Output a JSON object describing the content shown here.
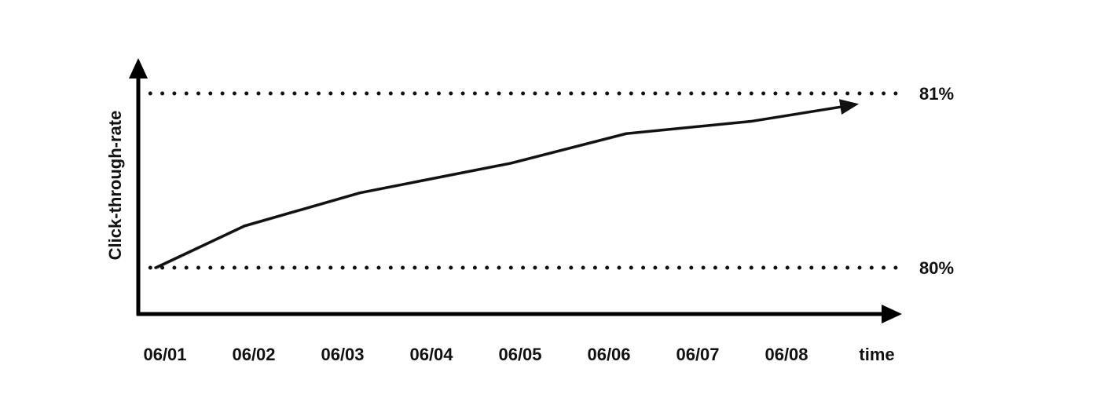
{
  "chart_data": {
    "type": "line",
    "ylabel": "Click-through-rate",
    "xlabel": "time",
    "categories": [
      "06/01",
      "06/02",
      "06/03",
      "06/04",
      "06/05",
      "06/06",
      "06/07",
      "06/08"
    ],
    "series": [
      {
        "x": [
          0,
          1.0,
          2.3,
          3.0,
          4.0,
          5.3,
          6.7,
          7.8
        ],
        "values": [
          80.0,
          80.24,
          80.43,
          80.5,
          80.6,
          80.77,
          80.84,
          80.93
        ]
      }
    ],
    "reference_lines": [
      {
        "value": 81,
        "label": "81%",
        "style": "dotted"
      },
      {
        "value": 80,
        "label": "80%",
        "style": "dotted"
      }
    ],
    "ylim": [
      79.73,
      81.2
    ],
    "arrow_at_end": true,
    "grid": false,
    "legend": "none",
    "colors": {
      "line": "#111111",
      "axes": "#000000"
    }
  }
}
